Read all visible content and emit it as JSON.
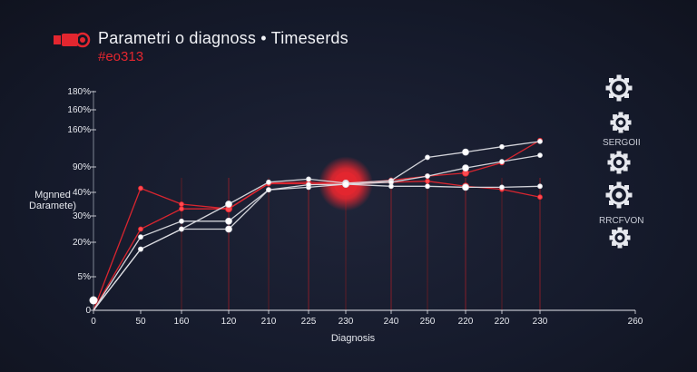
{
  "header": {
    "title": "Parametri o diagnoss • Timeserds",
    "subtitle": "#eo313"
  },
  "side_labels": [
    "SERGOII",
    "RRCFVON"
  ],
  "colors": {
    "background": "#161a2c",
    "accent": "#e3262f",
    "series_light": "#dcdde3",
    "axis": "#e6e8ee"
  },
  "icons": [
    "camera-icon",
    "gear-icon",
    "gear-icon",
    "gear-icon",
    "gear-icon",
    "gear-icon"
  ],
  "chart_data": {
    "type": "line",
    "title": "Parametri o diagnoss • Timeserds",
    "xlabel": "Diagnosis",
    "ylabel": "Mgnned Daramete)",
    "x_tick_labels": [
      "0",
      "50",
      "160",
      "120",
      "210",
      "225",
      "230",
      "240",
      "250",
      "220",
      "220",
      "230",
      "260"
    ],
    "y_tick_labels": [
      "0",
      "5%",
      "20%",
      "30%",
      "40%",
      "90%",
      "160%",
      "160%",
      "180%"
    ],
    "ylim": [
      0,
      180
    ],
    "grid": false,
    "series": [
      {
        "color": "#e3262f",
        "x": [
          0,
          50,
          160,
          120,
          210,
          225,
          230,
          240,
          250,
          220,
          220,
          230
        ],
        "y": [
          0,
          25,
          33,
          33,
          58,
          60,
          57,
          64,
          72,
          78,
          98,
          140
        ]
      },
      {
        "color": "#e3262f",
        "x": [
          0,
          50,
          160,
          120,
          210,
          225,
          230,
          240,
          250,
          220,
          220,
          230
        ],
        "y": [
          0,
          48,
          35,
          33,
          57,
          57,
          57,
          60,
          62,
          52,
          46,
          38
        ]
      },
      {
        "color": "#dcdde3",
        "x": [
          0,
          50,
          160,
          120,
          210,
          225,
          230,
          240,
          250,
          220,
          220,
          230
        ],
        "y": [
          0,
          17,
          25,
          35,
          60,
          66,
          58,
          63,
          108,
          118,
          128,
          138
        ]
      },
      {
        "color": "#dcdde3",
        "x": [
          0,
          50,
          160,
          120,
          210,
          225,
          230,
          240,
          250,
          220,
          220,
          230
        ],
        "y": [
          0,
          22,
          28,
          28,
          45,
          50,
          56,
          60,
          72,
          88,
          100,
          112
        ]
      },
      {
        "color": "#dcdde3",
        "x": [
          0,
          50,
          160,
          120,
          210,
          225,
          230,
          240,
          250,
          220,
          220,
          230
        ],
        "y": [
          0,
          17,
          25,
          25,
          45,
          55,
          56,
          52,
          52,
          50,
          50,
          52
        ]
      }
    ],
    "highlight": {
      "x": 230,
      "y": 57
    }
  }
}
